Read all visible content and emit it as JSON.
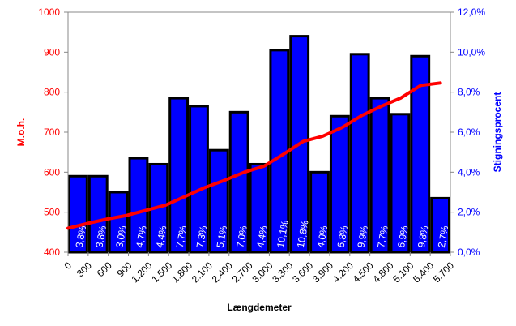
{
  "chart_data": {
    "type": "bar",
    "xlabel": "Længdemeter",
    "ylabel_left": "M.o.h.",
    "ylabel_right": "Stigningsprocent",
    "x_ticks": [
      "0",
      "300",
      "600",
      "900",
      "1.200",
      "1.500",
      "1.800",
      "2.100",
      "2.400",
      "2.700",
      "3.000",
      "3.300",
      "3.600",
      "3.900",
      "4.200",
      "4.500",
      "4.800",
      "5.100",
      "5.400",
      "5.700"
    ],
    "y_left": {
      "ticks": [
        "400",
        "500",
        "600",
        "700",
        "800",
        "900",
        "1000"
      ],
      "range": [
        400,
        1000
      ]
    },
    "y_right": {
      "ticks": [
        "0,0%",
        "2,0%",
        "4,0%",
        "6,0%",
        "8,0%",
        "10,0%",
        "12,0%"
      ],
      "range": [
        0,
        12
      ]
    },
    "grid": false,
    "series": [
      {
        "kind": "bar",
        "axis": "right",
        "color": "#0000FF",
        "values": [
          3.8,
          3.8,
          3.0,
          4.7,
          4.4,
          7.7,
          7.3,
          5.1,
          7.0,
          4.4,
          10.1,
          10.8,
          4.0,
          6.8,
          9.9,
          7.7,
          6.9,
          9.8,
          2.7
        ],
        "labels": [
          "3,8%",
          "3,8%",
          "3,0%",
          "4,7%",
          "4,4%",
          "7,7%",
          "7,3%",
          "5,1%",
          "7,0%",
          "4,4%",
          "10,1%",
          "10,8%",
          "4,0%",
          "6,8%",
          "9,9%",
          "7,7%",
          "6,9%",
          "9,8%",
          "2,7%"
        ]
      },
      {
        "kind": "line",
        "axis": "left",
        "color": "#FF0000",
        "x": [
          0,
          300,
          600,
          900,
          1200,
          1500,
          1800,
          2100,
          2400,
          2700,
          3000,
          3300,
          3600,
          3900,
          4200,
          4500,
          4800,
          5100,
          5400,
          5700
        ],
        "values": [
          460,
          472,
          483,
          492,
          505,
          518,
          540,
          562,
          580,
          600,
          615,
          645,
          677,
          690,
          712,
          742,
          765,
          786,
          817,
          823
        ]
      }
    ]
  }
}
